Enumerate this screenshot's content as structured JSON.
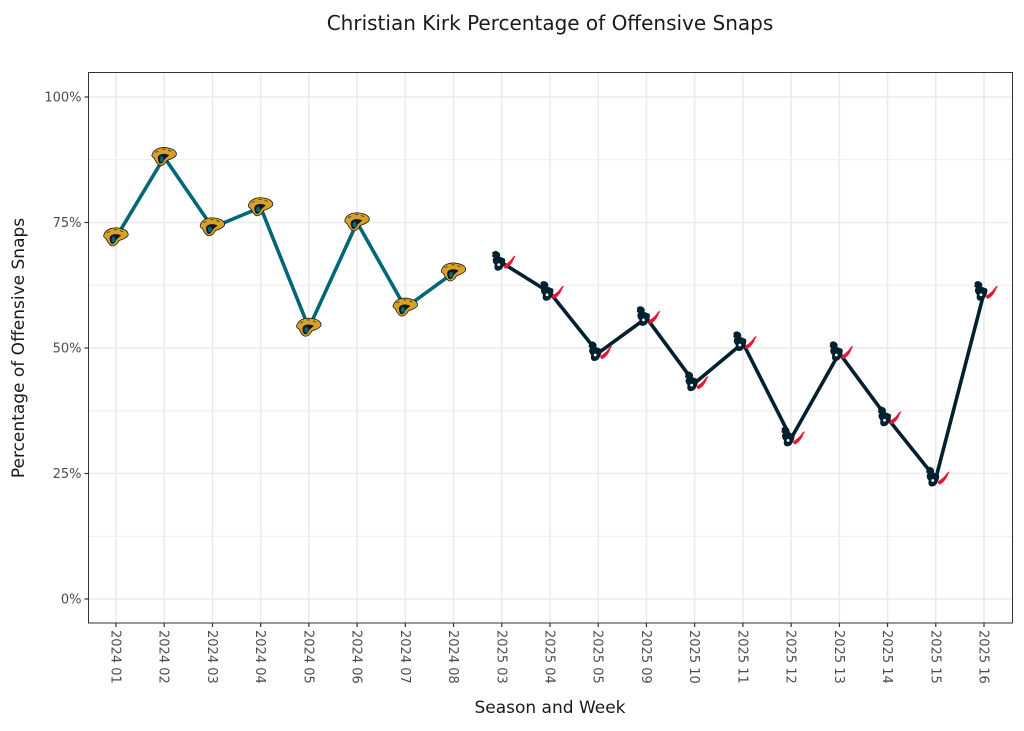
{
  "chart_data": {
    "type": "line",
    "title": "Christian Kirk Percentage of Offensive Snaps",
    "xlabel": "Season and Week",
    "ylabel": "Percentage of Offensive Snaps",
    "ylim": [
      0,
      100
    ],
    "y_ticks": [
      0,
      25,
      50,
      75,
      100
    ],
    "y_tick_labels": [
      "0%",
      "25%",
      "50%",
      "75%",
      "100%"
    ],
    "y_minor_ticks": [
      12.5,
      37.5,
      62.5,
      87.5
    ],
    "grid": true,
    "legend": "none",
    "categories": [
      "2024 01",
      "2024 02",
      "2024 03",
      "2024 04",
      "2024 05",
      "2024 06",
      "2024 07",
      "2024 08",
      "2025 03",
      "2025 04",
      "2025 05",
      "2025 09",
      "2025 10",
      "2025 11",
      "2025 12",
      "2025 13",
      "2025 14",
      "2025 15",
      "2025 16"
    ],
    "series": [
      {
        "name": "Jacksonville Jaguars",
        "team": "JAX",
        "marker": "jaguars-logo",
        "color": "#006778",
        "categories": [
          "2024 01",
          "2024 02",
          "2024 03",
          "2024 04",
          "2024 05",
          "2024 06",
          "2024 07",
          "2024 08"
        ],
        "values": [
          72,
          88,
          74,
          78,
          54,
          75,
          58,
          65
        ]
      },
      {
        "name": "Houston Texans",
        "team": "HOU",
        "marker": "texans-logo",
        "color": "#03202F",
        "categories": [
          "2025 03",
          "2025 04",
          "2025 05",
          "2025 09",
          "2025 10",
          "2025 11",
          "2025 12",
          "2025 13",
          "2025 14",
          "2025 15",
          "2025 16"
        ],
        "values": [
          67,
          61,
          49,
          56,
          43,
          51,
          32,
          49,
          36,
          24,
          61
        ]
      }
    ]
  },
  "colors": {
    "jaguars_teal": "#006778",
    "jaguars_gold": "#D7A22A",
    "texans_navy": "#03202F",
    "texans_red": "#E31837",
    "grid": "#EBEBEB",
    "panel_border": "#333333"
  }
}
